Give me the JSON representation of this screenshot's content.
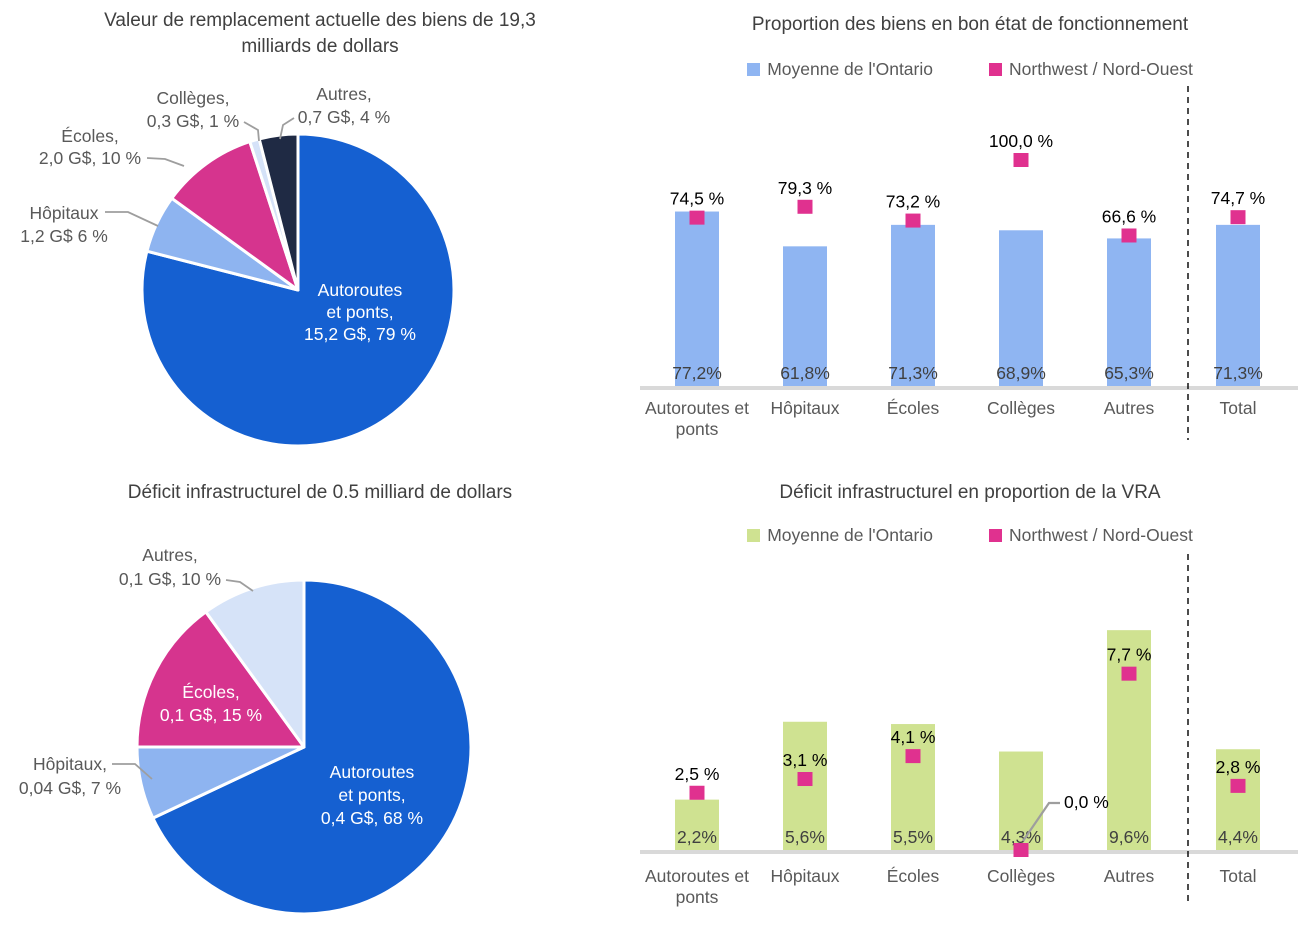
{
  "chart_data": [
    {
      "id": "pie_replacement_value",
      "type": "pie",
      "title": "Valeur de remplacement actuelle des biens de 19,3 milliards de dollars",
      "total": "19,3 G$",
      "legend_position": "none",
      "slices": [
        {
          "name": "Autoroutes et ponts",
          "amount": "15,2 G$",
          "pct": 79,
          "color": "#1560D1",
          "label_lines": [
            "Autoroutes",
            "et ponts,",
            "15,2 G$, 79 %"
          ],
          "label_placement": "inside"
        },
        {
          "name": "Hôpitaux",
          "amount": "1,2 G$",
          "pct": 6,
          "color": "#8EB4F0",
          "label_lines": [
            "Hôpitaux",
            "1,2 G$ 6 %"
          ],
          "label_placement": "callout"
        },
        {
          "name": "Écoles",
          "amount": "2,0 G$",
          "pct": 10,
          "color": "#D6348E",
          "label_lines": [
            "Écoles,",
            "2,0 G$, 10 %"
          ],
          "label_placement": "callout"
        },
        {
          "name": "Collèges",
          "amount": "0,3 G$",
          "pct": 1,
          "color": "#D5E2F8",
          "label_lines": [
            "Collèges,",
            "0,3 G$, 1 %"
          ],
          "label_placement": "callout"
        },
        {
          "name": "Autres",
          "amount": "0,7 G$",
          "pct": 4,
          "color": "#1F2A44",
          "label_lines": [
            "Autres,",
            "0,7 G$, 4 %"
          ],
          "label_placement": "callout"
        }
      ]
    },
    {
      "id": "bar_good_condition",
      "type": "bar",
      "title": "Proportion des biens en bon état de fonctionnement",
      "categories": [
        "Autoroutes et ponts",
        "Hôpitaux",
        "Écoles",
        "Collèges",
        "Autres",
        "Total"
      ],
      "category_lines": [
        [
          "Autoroutes et",
          "ponts"
        ],
        [
          "Hôpitaux"
        ],
        [
          "Écoles"
        ],
        [
          "Collèges"
        ],
        [
          "Autres"
        ],
        [
          "Total"
        ]
      ],
      "ylim": [
        0,
        100
      ],
      "unit": "%",
      "grid": false,
      "legend_position": "top",
      "separator_before_last_category": true,
      "series": [
        {
          "name": "Moyenne de l'Ontario",
          "type": "bar",
          "color": "#8FB5F2",
          "values": [
            77.2,
            61.8,
            71.3,
            68.9,
            65.3,
            71.3
          ],
          "value_labels": [
            "77,2%",
            "61,8%",
            "71,3%",
            "68,9%",
            "65,3%",
            "71,3%"
          ]
        },
        {
          "name": "Northwest / Nord-Ouest",
          "type": "square-marker",
          "color": "#E0318F",
          "values": [
            74.5,
            79.3,
            73.2,
            100.0,
            66.6,
            74.7
          ],
          "value_labels": [
            "74,5 %",
            "79,3 %",
            "73,2 %",
            "100,0 %",
            "66,6 %",
            "74,7 %"
          ]
        }
      ]
    },
    {
      "id": "pie_infrastructure_deficit",
      "type": "pie",
      "title": "Déficit infrastructurel de 0.5 milliard de dollars",
      "total": "0,5 G$",
      "legend_position": "none",
      "slices": [
        {
          "name": "Autoroutes et ponts",
          "amount": "0,4 G$",
          "pct": 68,
          "color": "#1560D1",
          "label_lines": [
            "Autoroutes",
            "et ponts,",
            "0,4 G$, 68 %"
          ],
          "label_placement": "inside"
        },
        {
          "name": "Hôpitaux",
          "amount": "0,04 G$",
          "pct": 7,
          "color": "#8EB4F0",
          "label_lines": [
            "Hôpitaux,",
            "0,04 G$, 7 %"
          ],
          "label_placement": "callout"
        },
        {
          "name": "Écoles",
          "amount": "0,1 G$",
          "pct": 15,
          "color": "#D6348E",
          "label_lines": [
            "Écoles,",
            "0,1 G$, 15 %"
          ],
          "label_placement": "inside"
        },
        {
          "name": "Autres",
          "amount": "0,1 G$",
          "pct": 10,
          "color": "#D6E3F8",
          "label_lines": [
            "Autres,",
            "0,1 G$, 10 %"
          ],
          "label_placement": "callout"
        }
      ]
    },
    {
      "id": "bar_deficit_vs_vra",
      "type": "bar",
      "title": "Déficit infrastructurel en proportion de la VRA",
      "categories": [
        "Autoroutes et ponts",
        "Hôpitaux",
        "Écoles",
        "Collèges",
        "Autres",
        "Total"
      ],
      "category_lines": [
        [
          "Autoroutes et",
          "ponts"
        ],
        [
          "Hôpitaux"
        ],
        [
          "Écoles"
        ],
        [
          "Collèges"
        ],
        [
          "Autres"
        ],
        [
          "Total"
        ]
      ],
      "ylim": [
        0,
        10
      ],
      "unit": "%",
      "grid": false,
      "legend_position": "top",
      "separator_before_last_category": true,
      "series": [
        {
          "name": "Moyenne de l'Ontario",
          "type": "bar",
          "color": "#CFE291",
          "values": [
            2.2,
            5.6,
            5.5,
            4.3,
            9.6,
            4.4
          ],
          "value_labels": [
            "2,2%",
            "5,6%",
            "5,5%",
            "4,3%",
            "9,6%",
            "4,4%"
          ]
        },
        {
          "name": "Northwest / Nord-Ouest",
          "type": "square-marker",
          "color": "#E0318F",
          "values": [
            2.5,
            3.1,
            4.1,
            0.0,
            7.7,
            2.8
          ],
          "value_labels": [
            "2,5 %",
            "3,1 %",
            "4,1 %",
            "0,0 %",
            "7,7 %",
            "2,8 %"
          ]
        }
      ]
    }
  ],
  "colors": {
    "main_blue": "#1560D1",
    "light_blue": "#8EB4F0",
    "pale_blue": "#D6E3F8",
    "navy": "#1F2A44",
    "magenta": "#D6348E",
    "marker_pink": "#E0318F",
    "bar_blue": "#8FB5F2",
    "bar_green": "#CFE291",
    "title_gray": "#404040",
    "label_gray": "#595959",
    "axis_gray": "#D9D9D9"
  }
}
